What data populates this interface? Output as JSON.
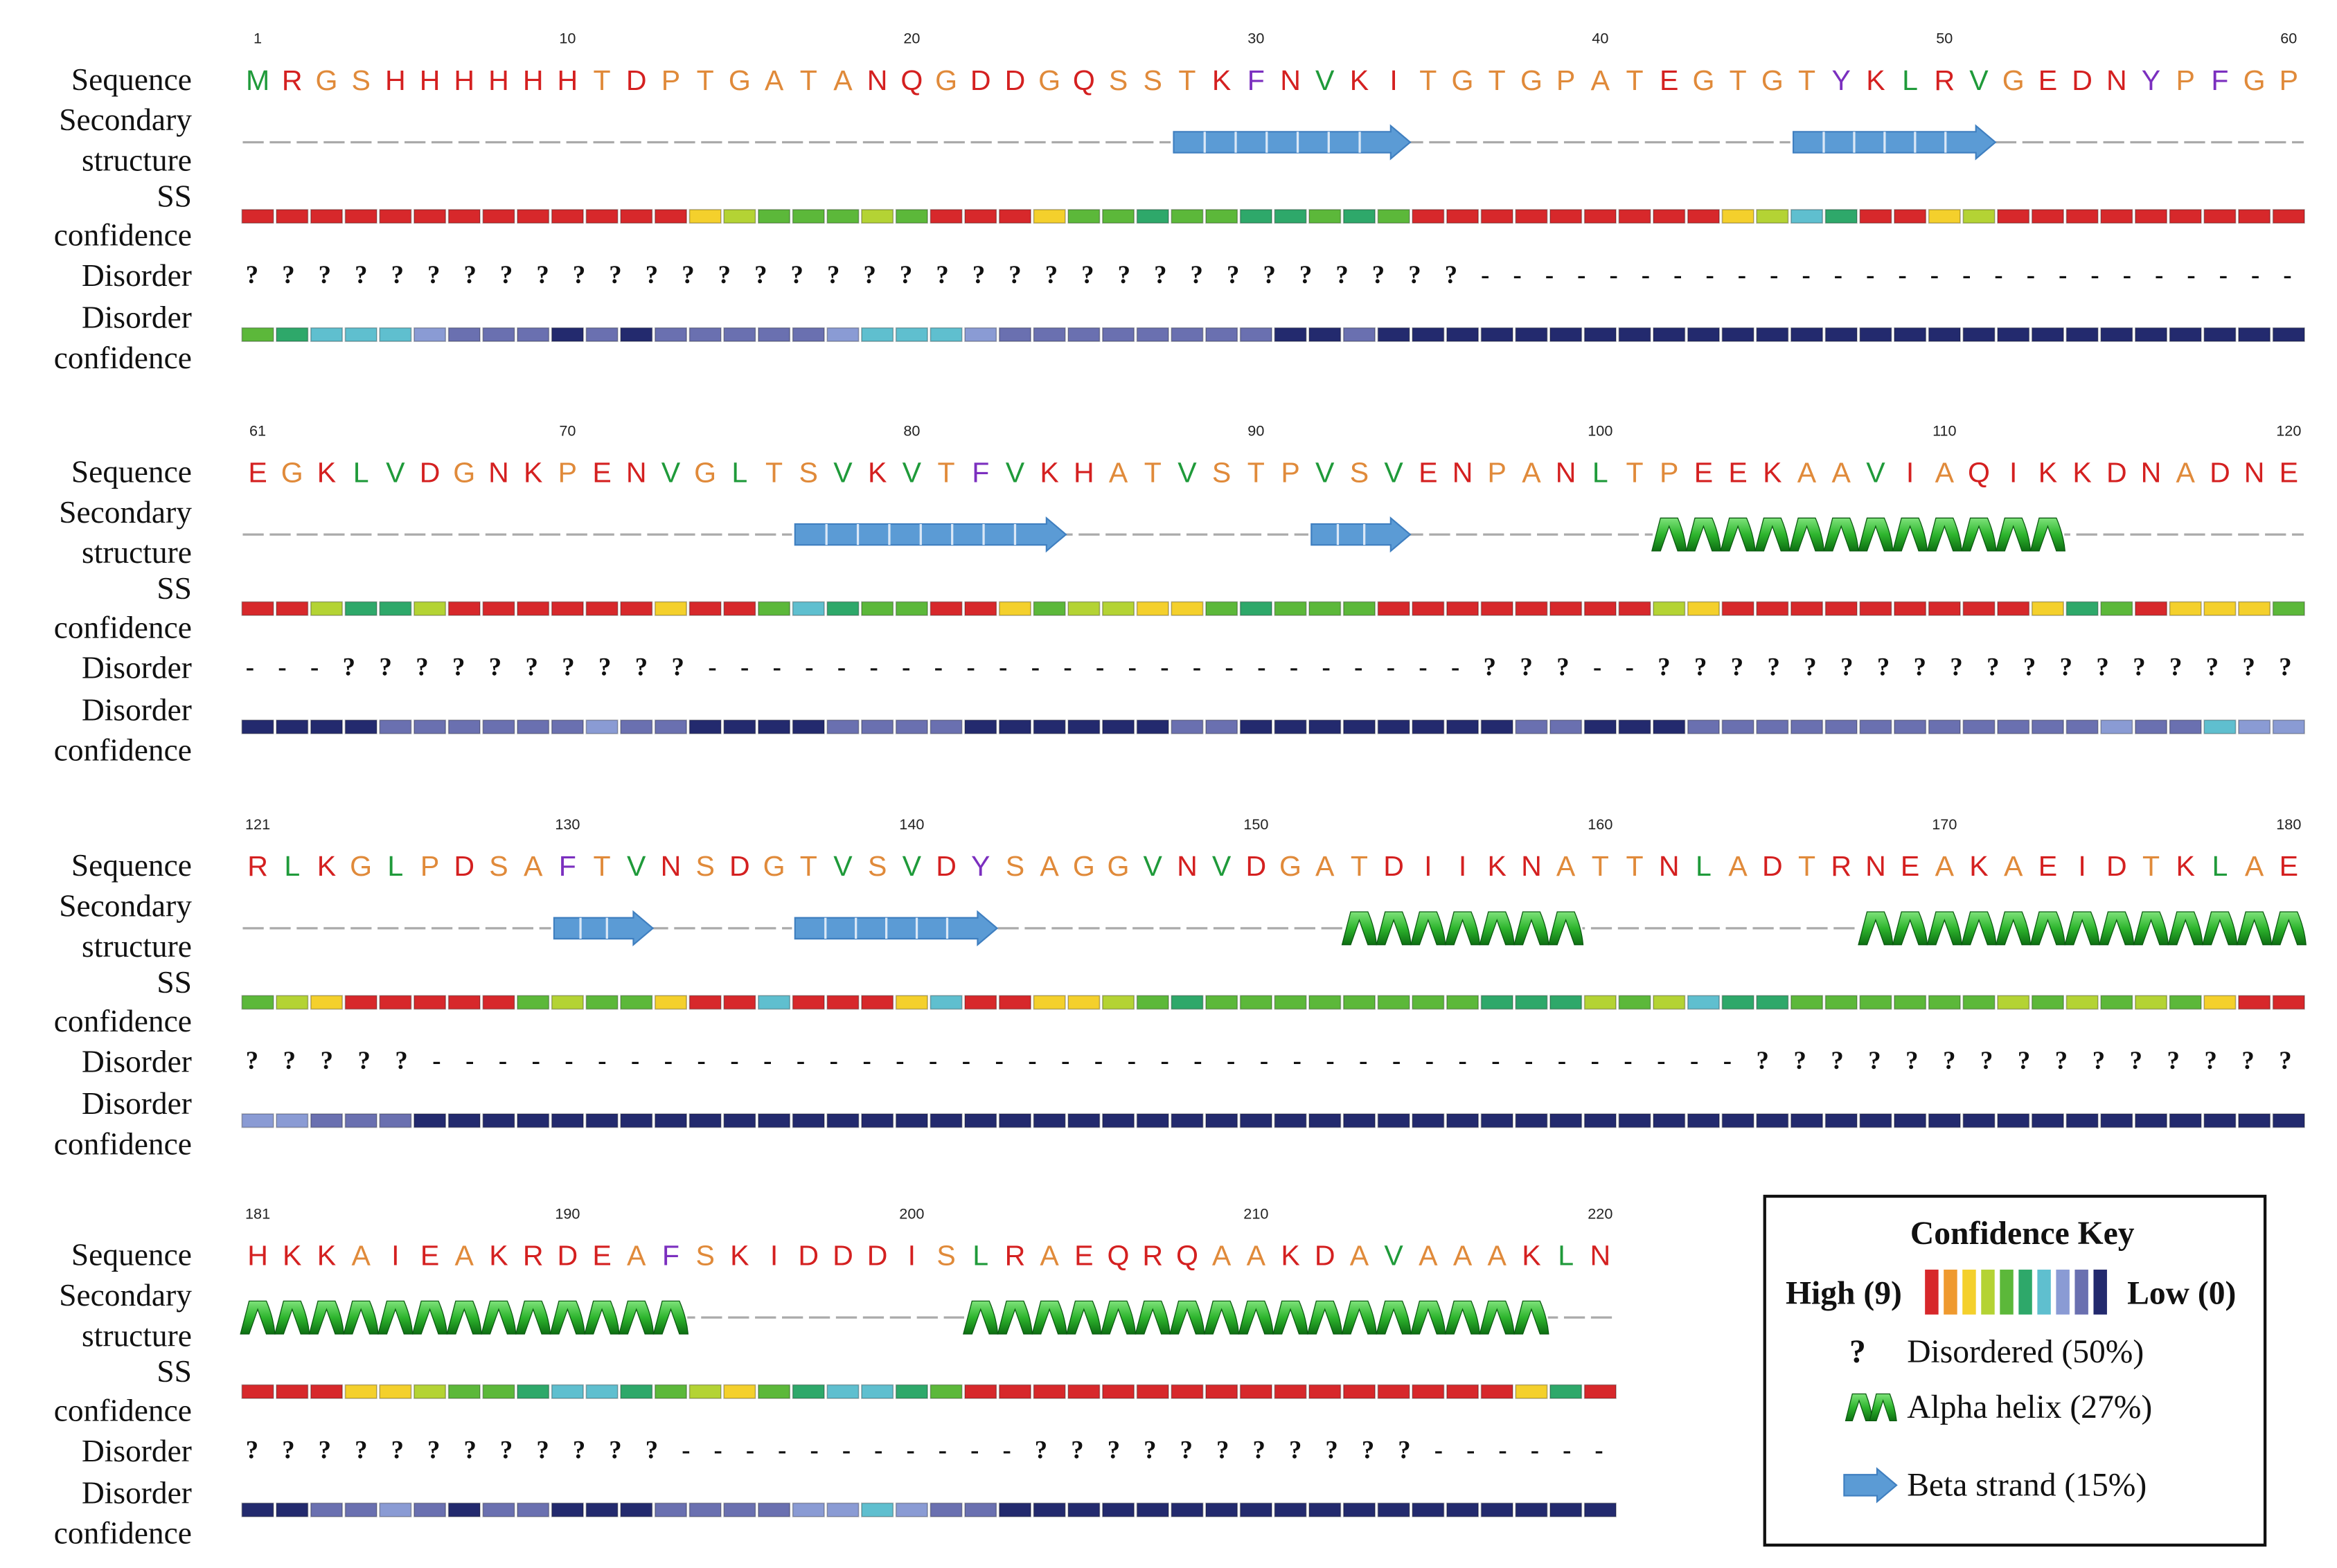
{
  "labels": {
    "sequence": [
      "Sequence"
    ],
    "secondary_structure": [
      "Secondary",
      "structure"
    ],
    "ss_confidence": [
      "SS",
      "confidence"
    ],
    "disorder": [
      "Disorder"
    ],
    "disorder_confidence": [
      "Disorder",
      "confidence"
    ]
  },
  "blocks": [
    {
      "numbers": [
        1,
        10,
        20,
        30,
        40,
        50,
        60
      ],
      "sequence": [
        "M",
        "R",
        "G",
        "S",
        "H",
        "H",
        "H",
        "H",
        "H",
        "H",
        "T",
        "D",
        "P",
        "T",
        "G",
        "A",
        "T",
        "A",
        "N",
        "Q",
        "G",
        "D",
        "D",
        "G",
        "Q",
        "S",
        "S",
        "T",
        "K",
        "F",
        "N",
        "V",
        "K",
        "I",
        "T",
        "G",
        "T",
        "G",
        "P",
        "A",
        "T",
        "E",
        "G",
        "T",
        "G",
        "T",
        "Y",
        "K",
        "L",
        "R",
        "V",
        "G",
        "E",
        "D",
        "N",
        "Y",
        "P",
        "F",
        "G",
        "P"
      ],
      "ss": [
        {
          "type": "strand",
          "start": 28,
          "end": 34
        },
        {
          "type": "strand",
          "start": 46,
          "end": 51
        }
      ],
      "ss_confidence": [
        9,
        9,
        9,
        9,
        9,
        9,
        9,
        9,
        9,
        9,
        9,
        9,
        9,
        7,
        6,
        5,
        5,
        5,
        6,
        5,
        9,
        9,
        9,
        7,
        5,
        5,
        4,
        5,
        5,
        4,
        4,
        5,
        4,
        5,
        9,
        9,
        9,
        9,
        9,
        9,
        9,
        9,
        9,
        7,
        6,
        3,
        4,
        9,
        9,
        7,
        6,
        9,
        9,
        9,
        9,
        9,
        9,
        9,
        9,
        9
      ],
      "disorder": "??????????????????????????????????--------------------------",
      "disorder_confidence": [
        5,
        4,
        3,
        3,
        3,
        2,
        1,
        1,
        1,
        0,
        1,
        0,
        1,
        1,
        1,
        1,
        1,
        2,
        3,
        3,
        3,
        2,
        1,
        1,
        1,
        1,
        1,
        1,
        1,
        1,
        0,
        0,
        1,
        0,
        0,
        0,
        0,
        0,
        0,
        0,
        0,
        0,
        0,
        0,
        0,
        0,
        0,
        0,
        0,
        0,
        0,
        0,
        0,
        0,
        0,
        0,
        0,
        0,
        0,
        0
      ]
    },
    {
      "numbers": [
        61,
        70,
        80,
        90,
        100,
        110,
        120
      ],
      "sequence": [
        "E",
        "G",
        "K",
        "L",
        "V",
        "D",
        "G",
        "N",
        "K",
        "P",
        "E",
        "N",
        "V",
        "G",
        "L",
        "T",
        "S",
        "V",
        "K",
        "V",
        "T",
        "F",
        "V",
        "K",
        "H",
        "A",
        "T",
        "V",
        "S",
        "T",
        "P",
        "V",
        "S",
        "V",
        "E",
        "N",
        "P",
        "A",
        "N",
        "L",
        "T",
        "P",
        "E",
        "E",
        "K",
        "A",
        "A",
        "V",
        "I",
        "A",
        "Q",
        "I",
        "K",
        "K",
        "D",
        "N",
        "A",
        "D",
        "N",
        "E"
      ],
      "ss": [
        {
          "type": "strand",
          "start": 77,
          "end": 84
        },
        {
          "type": "strand",
          "start": 92,
          "end": 94
        },
        {
          "type": "helix",
          "start": 102,
          "end": 113
        }
      ],
      "ss_confidence": [
        9,
        9,
        6,
        4,
        4,
        6,
        9,
        9,
        9,
        9,
        9,
        9,
        7,
        9,
        9,
        5,
        3,
        4,
        5,
        5,
        9,
        9,
        7,
        5,
        6,
        6,
        7,
        7,
        5,
        4,
        5,
        5,
        5,
        9,
        9,
        9,
        9,
        9,
        9,
        9,
        9,
        6,
        7,
        9,
        9,
        9,
        9,
        9,
        9,
        9,
        9,
        9,
        7,
        4,
        5,
        9,
        7,
        7,
        7,
        5
      ],
      "disorder": "---??????????------------------------???--??????????????????",
      "disorder_confidence": [
        0,
        0,
        0,
        0,
        1,
        1,
        1,
        1,
        1,
        1,
        2,
        1,
        1,
        0,
        0,
        0,
        0,
        1,
        1,
        1,
        1,
        0,
        0,
        0,
        0,
        0,
        0,
        1,
        1,
        0,
        0,
        0,
        0,
        0,
        0,
        0,
        0,
        1,
        1,
        0,
        0,
        0,
        1,
        1,
        1,
        1,
        1,
        1,
        1,
        1,
        1,
        1,
        1,
        1,
        2,
        1,
        1,
        3,
        2,
        2
      ]
    },
    {
      "numbers": [
        121,
        130,
        140,
        150,
        160,
        170,
        180
      ],
      "sequence": [
        "R",
        "L",
        "K",
        "G",
        "L",
        "P",
        "D",
        "S",
        "A",
        "F",
        "T",
        "V",
        "N",
        "S",
        "D",
        "G",
        "T",
        "V",
        "S",
        "V",
        "D",
        "Y",
        "S",
        "A",
        "G",
        "G",
        "V",
        "N",
        "V",
        "D",
        "G",
        "A",
        "T",
        "D",
        "I",
        "I",
        "K",
        "N",
        "A",
        "T",
        "T",
        "N",
        "L",
        "A",
        "D",
        "T",
        "R",
        "N",
        "E",
        "A",
        "K",
        "A",
        "E",
        "I",
        "D",
        "T",
        "K",
        "L",
        "A",
        "E"
      ],
      "ss": [
        {
          "type": "strand",
          "start": 130,
          "end": 132
        },
        {
          "type": "strand",
          "start": 137,
          "end": 142
        },
        {
          "type": "helix",
          "start": 153,
          "end": 159
        },
        {
          "type": "helix",
          "start": 168,
          "end": 180
        }
      ],
      "ss_confidence": [
        5,
        6,
        7,
        9,
        9,
        9,
        9,
        9,
        5,
        6,
        5,
        5,
        7,
        9,
        9,
        3,
        9,
        9,
        9,
        7,
        3,
        9,
        9,
        7,
        7,
        6,
        5,
        4,
        5,
        5,
        5,
        5,
        5,
        5,
        5,
        5,
        4,
        4,
        4,
        6,
        5,
        6,
        3,
        4,
        4,
        5,
        5,
        5,
        5,
        5,
        5,
        6,
        5,
        6,
        5,
        6,
        5,
        7,
        9,
        9
      ],
      "disorder": "?????----------------------------------------???????????????",
      "disorder_confidence": [
        2,
        2,
        1,
        1,
        1,
        0,
        0,
        0,
        0,
        0,
        0,
        0,
        0,
        0,
        0,
        0,
        0,
        0,
        0,
        0,
        0,
        0,
        0,
        0,
        0,
        0,
        0,
        0,
        0,
        0,
        0,
        0,
        0,
        0,
        0,
        0,
        0,
        0,
        0,
        0,
        0,
        0,
        0,
        0,
        0,
        0,
        0,
        0,
        0,
        0,
        0,
        0,
        0,
        0,
        0,
        0,
        0,
        0,
        0,
        0
      ]
    },
    {
      "numbers": [
        181,
        190,
        200,
        210,
        220
      ],
      "sequence": [
        "H",
        "K",
        "K",
        "A",
        "I",
        "E",
        "A",
        "K",
        "R",
        "D",
        "E",
        "A",
        "F",
        "S",
        "K",
        "I",
        "D",
        "D",
        "D",
        "I",
        "S",
        "L",
        "R",
        "A",
        "E",
        "Q",
        "R",
        "Q",
        "A",
        "A",
        "K",
        "D",
        "A",
        "V",
        "A",
        "A",
        "A",
        "K",
        "L",
        "N"
      ],
      "ss": [
        {
          "type": "helix",
          "start": 181,
          "end": 193
        },
        {
          "type": "helix",
          "start": 202,
          "end": 218
        }
      ],
      "ss_confidence": [
        9,
        9,
        9,
        7,
        7,
        6,
        5,
        5,
        4,
        3,
        3,
        4,
        5,
        6,
        7,
        5,
        4,
        3,
        3,
        4,
        5,
        9,
        9,
        9,
        9,
        9,
        9,
        9,
        9,
        9,
        9,
        9,
        9,
        9,
        9,
        9,
        9,
        7,
        4,
        9
      ],
      "disorder": "????????????-----------???????????------",
      "disorder_confidence": [
        0,
        0,
        1,
        1,
        2,
        1,
        0,
        1,
        1,
        0,
        0,
        0,
        1,
        1,
        1,
        1,
        2,
        2,
        3,
        2,
        1,
        1,
        0,
        0,
        0,
        0,
        0,
        0,
        0,
        0,
        0,
        0,
        0,
        0,
        0,
        0,
        0,
        0,
        0,
        0
      ]
    }
  ],
  "key": {
    "title": "Confidence Key",
    "high": "High (9)",
    "low": "Low (0)",
    "items": [
      {
        "symbol": "?",
        "label": "Disordered (50%)"
      },
      {
        "type": "helix",
        "label": "Alpha helix (27%)"
      },
      {
        "type": "strand",
        "label": "Beta strand (15%)"
      }
    ]
  },
  "confidence_colors": [
    "#232a6e",
    "#6a70b0",
    "#8a9bd4",
    "#5fbfcf",
    "#2ea86a",
    "#5cb83a",
    "#b4d334",
    "#f4d02c",
    "#ef9a2f",
    "#d7282b"
  ],
  "residue_colors": {
    "M": "#1f9a3a",
    "V": "#1f9a3a",
    "L": "#1f9a3a",
    "I": "#d42020",
    "R": "#d42020",
    "H": "#d42020",
    "D": "#d42020",
    "E": "#d42020",
    "K": "#d42020",
    "N": "#d42020",
    "Q": "#d42020",
    "G": "#e08a3a",
    "S": "#e08a3a",
    "T": "#e08a3a",
    "A": "#e08a3a",
    "P": "#e08a3a",
    "F": "#7b2fbf",
    "Y": "#7b2fbf"
  }
}
